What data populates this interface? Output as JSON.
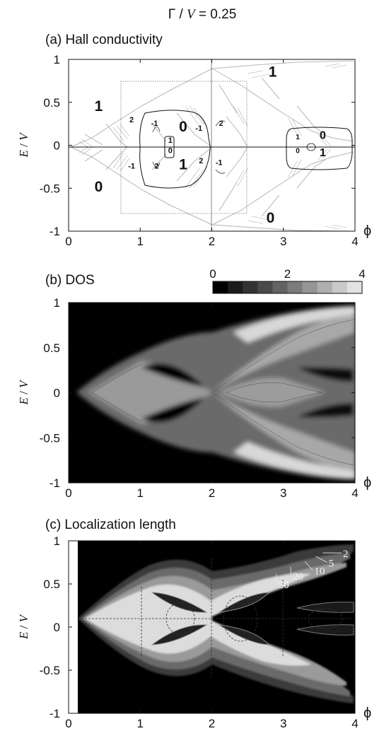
{
  "figure": {
    "header_prefix": "Γ / ",
    "header_var": "V",
    "header_value": " = 0.25"
  },
  "chart_data": [
    {
      "type": "heatmap",
      "panel_label": "(a) Hall conductivity",
      "title": "Hall conductivity",
      "xlabel": "ϕ",
      "ylabel_var": "E",
      "ylabel_slash": " / ",
      "ylabel_var2": "V",
      "xlim": [
        0,
        4
      ],
      "ylim": [
        -1,
        1
      ],
      "xticks": [
        0,
        1,
        2,
        3,
        4
      ],
      "xtick_labels": [
        "0",
        "1",
        "2",
        "3",
        "4"
      ],
      "yticks": [
        -1,
        -0.5,
        0,
        0.5,
        1
      ],
      "ytick_labels": [
        "-1",
        "-0.5",
        "0",
        "0.5",
        "1"
      ],
      "grid": false,
      "annotations": [
        {
          "text": "1",
          "x": 0.42,
          "y": 0.46,
          "size": "large"
        },
        {
          "text": "0",
          "x": 0.42,
          "y": -0.48,
          "size": "large"
        },
        {
          "text": "1",
          "x": 2.85,
          "y": 0.86,
          "size": "large"
        },
        {
          "text": "0",
          "x": 2.82,
          "y": -0.84,
          "size": "large"
        },
        {
          "text": "0",
          "x": 1.6,
          "y": 0.22,
          "size": "large"
        },
        {
          "text": "1",
          "x": 1.6,
          "y": -0.22,
          "size": "large"
        },
        {
          "text": "2",
          "x": 0.88,
          "y": 0.3,
          "size": "small"
        },
        {
          "text": "-1",
          "x": 1.2,
          "y": 0.26,
          "size": "small"
        },
        {
          "text": "-1",
          "x": 0.88,
          "y": -0.24,
          "size": "small"
        },
        {
          "text": "2",
          "x": 1.23,
          "y": -0.24,
          "size": "small"
        },
        {
          "text": "1",
          "x": 1.42,
          "y": 0.06,
          "size": "small"
        },
        {
          "text": "0",
          "x": 1.42,
          "y": -0.06,
          "size": "small"
        },
        {
          "text": "-1",
          "x": 1.82,
          "y": 0.2,
          "size": "small"
        },
        {
          "text": "2",
          "x": 2.13,
          "y": 0.26,
          "size": "small"
        },
        {
          "text": "2",
          "x": 1.85,
          "y": -0.18,
          "size": "small"
        },
        {
          "text": "-1",
          "x": 2.1,
          "y": -0.2,
          "size": "small"
        },
        {
          "text": "0",
          "x": 3.55,
          "y": 0.12,
          "size": "medium"
        },
        {
          "text": "1",
          "x": 3.55,
          "y": -0.08,
          "size": "medium"
        },
        {
          "text": "1",
          "x": 3.2,
          "y": 0.1,
          "size": "tiny"
        },
        {
          "text": "0",
          "x": 3.2,
          "y": -0.06,
          "size": "tiny"
        }
      ]
    },
    {
      "type": "heatmap",
      "panel_label": "(b) DOS",
      "title": "DOS",
      "xlabel": "ϕ",
      "ylabel_var": "E",
      "ylabel_slash": " / ",
      "ylabel_var2": "V",
      "xlim": [
        0,
        4
      ],
      "ylim": [
        -1,
        1
      ],
      "xticks": [
        0,
        1,
        2,
        3,
        4
      ],
      "xtick_labels": [
        "0",
        "1",
        "2",
        "3",
        "4"
      ],
      "yticks": [
        -1,
        -0.5,
        0,
        0.5,
        1
      ],
      "ytick_labels": [
        "-1",
        "-0.5",
        "0",
        "0.5",
        "1"
      ],
      "colorbar": {
        "range": [
          0,
          4
        ],
        "tick_labels": [
          "0",
          "2",
          "4"
        ],
        "tick_values": [
          0,
          2,
          4
        ],
        "levels": 10,
        "colors": [
          "#000000",
          "#1c1c1c",
          "#333333",
          "#4a4a4a",
          "#636363",
          "#7b7b7b",
          "#959595",
          "#afafaf",
          "#c9c9c9",
          "#e2e2e2"
        ]
      }
    },
    {
      "type": "heatmap",
      "panel_label": "(c) Localization length",
      "title": "Localization length",
      "xlabel": "ϕ",
      "ylabel_var": "E",
      "ylabel_slash": " / ",
      "ylabel_var2": "V",
      "xlim": [
        0,
        4
      ],
      "ylim": [
        -1,
        1
      ],
      "xticks": [
        0,
        1,
        2,
        3,
        4
      ],
      "xtick_labels": [
        "0",
        "1",
        "2",
        "3",
        "4"
      ],
      "yticks": [
        -1,
        -0.5,
        0,
        0.5,
        1
      ],
      "ytick_labels": [
        "-1",
        "-0.5",
        "0",
        "0.5",
        "1"
      ],
      "contour_levels": [
        2,
        5,
        10,
        20,
        50
      ],
      "contour_labels": [
        "2",
        "5",
        "10",
        "20",
        "50"
      ],
      "colors": [
        "#000000",
        "#3a3a3a",
        "#5e5e5e",
        "#838383",
        "#a9a9a9",
        "#dcdcdc"
      ]
    }
  ]
}
